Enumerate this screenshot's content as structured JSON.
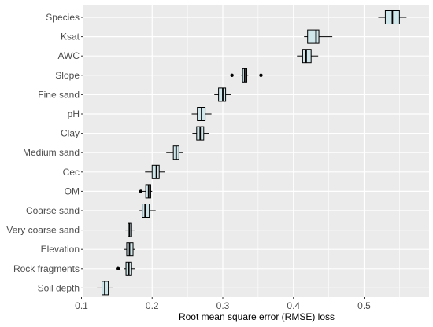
{
  "chart_data": {
    "type": "boxplot",
    "orientation": "horizontal",
    "xlabel": "Root mean square error (RMSE) loss",
    "ylabel": "",
    "xlim": [
      0.1,
      0.56
    ],
    "xticks": [
      "0.1",
      "0.2",
      "0.3",
      "0.4",
      "0.5"
    ],
    "grid": true,
    "colors": {
      "panel": "#ebebeb",
      "grid": "#ffffff",
      "box_fill": "#cfe6ea",
      "box_line": "#000000",
      "outlier": "#000000"
    },
    "categories": [
      {
        "label": "Species",
        "whisker_low": 0.52,
        "q1": 0.53,
        "median": 0.54,
        "q3": 0.55,
        "whisker_high": 0.56,
        "outliers": []
      },
      {
        "label": "Ksat",
        "whisker_low": 0.415,
        "q1": 0.42,
        "median": 0.432,
        "q3": 0.436,
        "whisker_high": 0.455,
        "outliers": []
      },
      {
        "label": "AWC",
        "whisker_low": 0.405,
        "q1": 0.413,
        "median": 0.418,
        "q3": 0.425,
        "whisker_high": 0.435,
        "outliers": []
      },
      {
        "label": "Slope",
        "whisker_low": 0.326,
        "q1": 0.328,
        "median": 0.331,
        "q3": 0.334,
        "whisker_high": 0.336,
        "outliers": [
          0.313,
          0.354
        ]
      },
      {
        "label": "Fine sand",
        "whisker_low": 0.288,
        "q1": 0.294,
        "median": 0.3,
        "q3": 0.304,
        "whisker_high": 0.312,
        "outliers": []
      },
      {
        "label": "pH",
        "whisker_low": 0.256,
        "q1": 0.264,
        "median": 0.27,
        "q3": 0.275,
        "whisker_high": 0.284,
        "outliers": []
      },
      {
        "label": "Clay",
        "whisker_low": 0.257,
        "q1": 0.263,
        "median": 0.268,
        "q3": 0.273,
        "whisker_high": 0.28,
        "outliers": []
      },
      {
        "label": "Medium sand",
        "whisker_low": 0.22,
        "q1": 0.23,
        "median": 0.234,
        "q3": 0.238,
        "whisker_high": 0.244,
        "outliers": []
      },
      {
        "label": "Cec",
        "whisker_low": 0.19,
        "q1": 0.2,
        "median": 0.206,
        "q3": 0.21,
        "whisker_high": 0.218,
        "outliers": []
      },
      {
        "label": "OM",
        "whisker_low": 0.186,
        "q1": 0.191,
        "median": 0.195,
        "q3": 0.198,
        "whisker_high": 0.2,
        "outliers": [
          0.184
        ]
      },
      {
        "label": "Coarse sand",
        "whisker_low": 0.182,
        "q1": 0.186,
        "median": 0.19,
        "q3": 0.196,
        "whisker_high": 0.205,
        "outliers": []
      },
      {
        "label": "Very coarse sand",
        "whisker_low": 0.162,
        "q1": 0.166,
        "median": 0.168,
        "q3": 0.171,
        "whisker_high": 0.176,
        "outliers": []
      },
      {
        "label": "Elevation",
        "whisker_low": 0.16,
        "q1": 0.164,
        "median": 0.168,
        "q3": 0.173,
        "whisker_high": 0.176,
        "outliers": []
      },
      {
        "label": "Rock fragments",
        "whisker_low": 0.16,
        "q1": 0.163,
        "median": 0.167,
        "q3": 0.171,
        "whisker_high": 0.176,
        "outliers": [
          0.151,
          0.152
        ]
      },
      {
        "label": "Soil depth",
        "whisker_low": 0.122,
        "q1": 0.129,
        "median": 0.133,
        "q3": 0.138,
        "whisker_high": 0.145,
        "outliers": []
      }
    ]
  }
}
